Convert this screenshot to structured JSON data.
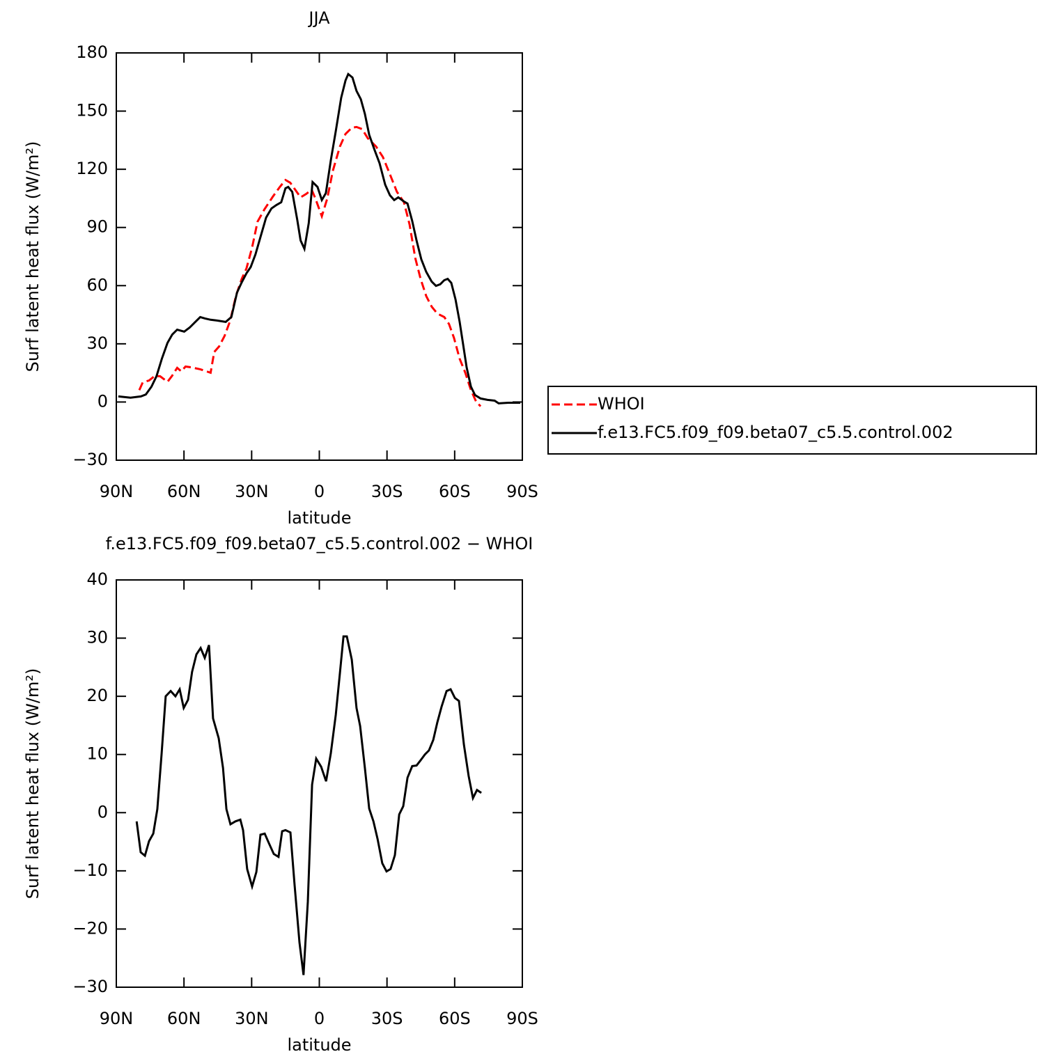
{
  "chart_data": [
    {
      "type": "line",
      "title": "JJA",
      "xlabel": "latitude",
      "ylabel": "Surf latent heat flux (W/m²)",
      "xlim": [
        90,
        -90
      ],
      "xticks": [
        {
          "value": 90,
          "label": "90N"
        },
        {
          "value": 60,
          "label": "60N"
        },
        {
          "value": 30,
          "label": "30N"
        },
        0,
        {
          "value": -30,
          "label": "30S"
        },
        {
          "value": -60,
          "label": "60S"
        },
        {
          "value": -90,
          "label": "90S"
        }
      ],
      "ylim": [
        -30,
        180
      ],
      "yticks": [
        {
          "value": -30,
          "label": "−30"
        },
        0,
        30,
        60,
        90,
        120,
        150,
        180
      ],
      "legend": "right",
      "series": [
        {
          "name": "WHOI",
          "color": "#ff0000",
          "dashed": true,
          "x": [
            79.8,
            78.3,
            75.5,
            73.1,
            70.6,
            67.3,
            65.2,
            63.0,
            61.2,
            59.3,
            56.8,
            52.8,
            48.2,
            46.6,
            44.4,
            42.0,
            39.5,
            37.0,
            34.4,
            32.3,
            29.8,
            27.4,
            24.3,
            20.6,
            17.5,
            15.0,
            12.9,
            10.7,
            8.3,
            5.8,
            3.4,
            1.7,
            -1.1,
            -3.5,
            -6.0,
            -9.1,
            -11.6,
            -14.4,
            -16.5,
            -19.0,
            -21.5,
            -25.2,
            -28.2,
            -31.3,
            -34.4,
            -37.5,
            -40.0,
            -42.5,
            -44.9,
            -47.4,
            -49.8,
            -52.3,
            -55.4,
            -57.5,
            -59.7,
            -62.2,
            -64.7,
            -67.2,
            -69.6,
            -71.5
          ],
          "values": [
            6.1,
            10.1,
            11.1,
            13.3,
            13.3,
            10.4,
            13.6,
            17.6,
            15.8,
            18.3,
            17.9,
            16.9,
            15.1,
            25.8,
            28.7,
            34.1,
            42.0,
            54.6,
            63.5,
            68.9,
            79.7,
            93.0,
            99.4,
            105.9,
            110.9,
            114.5,
            113.1,
            109.5,
            105.5,
            107.3,
            109.5,
            104.8,
            95.8,
            104.8,
            119.2,
            131.7,
            138.2,
            141.4,
            141.8,
            140.7,
            136.0,
            131.7,
            126.3,
            117.4,
            108.4,
            103.0,
            91.5,
            74.3,
            63.5,
            54.6,
            49.2,
            45.6,
            43.8,
            40.2,
            33.0,
            22.3,
            15.1,
            6.1,
            0,
            -2.2
          ]
        },
        {
          "name": "f.e13.FC5.f09_f09.beta07_c5.5.control.002",
          "color": "#000000",
          "dashed": false,
          "x": [
            89.1,
            83.7,
            79.1,
            76.9,
            74.4,
            72.2,
            69.8,
            67.3,
            65.2,
            63.0,
            59.9,
            57.5,
            55.0,
            52.8,
            50.7,
            48.2,
            45.4,
            41.5,
            39.0,
            36.5,
            34.4,
            32.3,
            30.4,
            28.3,
            26.1,
            23.6,
            21.2,
            19.0,
            16.9,
            15.0,
            13.8,
            12.0,
            9.8,
            8.3,
            6.6,
            4.7,
            3.0,
            0.8,
            -1.1,
            -2.9,
            -5.1,
            -7.3,
            -9.7,
            -11.6,
            -12.8,
            -14.7,
            -16.5,
            -18.4,
            -20.2,
            -22.1,
            -24.5,
            -26.7,
            -29.2,
            -31.3,
            -33.2,
            -35.0,
            -37.5,
            -39.1,
            -41.2,
            -43.1,
            -45.2,
            -47.4,
            -49.8,
            -51.7,
            -53.6,
            -55.4,
            -56.9,
            -58.5,
            -60.4,
            -62.2,
            -63.8,
            -65.3,
            -67.2,
            -69.0,
            -71.5,
            -74.6,
            -77.7,
            -79.5,
            -83.8,
            -89.1
          ],
          "values": [
            2.9,
            2.2,
            2.9,
            3.9,
            7.9,
            13.3,
            22.3,
            30.5,
            34.8,
            37.3,
            36.3,
            38.4,
            41.3,
            43.8,
            43.1,
            42.4,
            42.0,
            41.3,
            43.8,
            56.4,
            61.7,
            66.4,
            69.6,
            76.1,
            85.1,
            95.1,
            99.8,
            101.6,
            103.0,
            110.2,
            110.9,
            108.4,
            94.0,
            83.3,
            79.0,
            92.2,
            113.4,
            110.9,
            104.1,
            107.7,
            124.6,
            139.6,
            156.9,
            165.8,
            169.1,
            167.3,
            160.4,
            156.1,
            148.6,
            137.8,
            129.9,
            123.1,
            112.0,
            106.6,
            104.1,
            105.5,
            103.4,
            102.3,
            93.3,
            83.3,
            73.6,
            67.1,
            62.1,
            59.9,
            60.7,
            62.8,
            63.5,
            61.4,
            52.8,
            41.3,
            29.4,
            17.9,
            7.9,
            3.6,
            1.8,
            1.1,
            0.7,
            -0.7,
            -0.4,
            -0.4
          ]
        }
      ]
    },
    {
      "type": "line",
      "title": "f.e13.FC5.f09_f09.beta07_c5.5.control.002 − WHOI",
      "xlabel": "latitude",
      "ylabel": "Surf latent heat flux (W/m²)",
      "xlim": [
        90,
        -90
      ],
      "xticks": [
        {
          "value": 90,
          "label": "90N"
        },
        {
          "value": 60,
          "label": "60N"
        },
        {
          "value": 30,
          "label": "30N"
        },
        0,
        {
          "value": -30,
          "label": "30S"
        },
        {
          "value": -60,
          "label": "60S"
        },
        {
          "value": -90,
          "label": "90S"
        }
      ],
      "ylim": [
        -30,
        40
      ],
      "yticks": [
        {
          "value": -30,
          "label": "−30"
        },
        {
          "value": -20,
          "label": "−20"
        },
        {
          "value": -10,
          "label": "−10"
        },
        0,
        10,
        20,
        30,
        40
      ],
      "series": [
        {
          "color": "#000000",
          "dashed": false,
          "x": [
            81.0,
            79.2,
            77.3,
            75.5,
            73.6,
            71.8,
            69.9,
            68.1,
            65.9,
            63.8,
            61.9,
            60.1,
            58.2,
            56.4,
            54.5,
            52.6,
            50.8,
            48.9,
            47.1,
            44.6,
            42.7,
            41.2,
            39.4,
            37.2,
            35.0,
            33.8,
            32.0,
            29.8,
            27.9,
            26.1,
            24.2,
            22.4,
            20.2,
            18.1,
            16.5,
            15.0,
            12.8,
            11.0,
            8.8,
            7.0,
            5.1,
            3.2,
            1.4,
            -0.8,
            -3.0,
            -5.1,
            -7.3,
            -9.1,
            -10.7,
            -12.2,
            -14.4,
            -16.5,
            -18.1,
            -20.2,
            -22.1,
            -24.0,
            -25.8,
            -27.9,
            -29.8,
            -31.6,
            -33.5,
            -35.4,
            -37.2,
            -39.1,
            -41.2,
            -43.1,
            -44.9,
            -46.8,
            -48.6,
            -50.5,
            -52.3,
            -54.2,
            -56.4,
            -58.2,
            -60.1,
            -61.9,
            -64.1,
            -66.2,
            -68.1,
            -69.9,
            -71.8
          ],
          "values": [
            -1.5,
            -6.8,
            -7.4,
            -4.9,
            -3.6,
            0.6,
            10.2,
            20.0,
            20.9,
            20.0,
            21.2,
            18.0,
            19.4,
            24.2,
            27.2,
            28.3,
            26.6,
            28.8,
            16.2,
            12.8,
            7.7,
            0.6,
            -2.0,
            -1.5,
            -1.2,
            -3.0,
            -9.7,
            -12.7,
            -10.2,
            -3.8,
            -3.6,
            -5.2,
            -7.1,
            -7.6,
            -3.2,
            -3.0,
            -3.4,
            -12.3,
            -22.3,
            -27.9,
            -15.3,
            4.8,
            9.3,
            7.9,
            5.4,
            10.2,
            16.8,
            23.9,
            30.3,
            30.3,
            26.3,
            18.0,
            14.9,
            7.7,
            0.7,
            -1.5,
            -4.5,
            -8.7,
            -10.1,
            -9.7,
            -7.3,
            -0.3,
            1.1,
            6.0,
            8.0,
            8.1,
            9.0,
            10.0,
            10.7,
            12.5,
            15.5,
            18.2,
            20.9,
            21.2,
            19.7,
            19.2,
            11.7,
            6.3,
            2.5,
            3.9,
            3.4
          ]
        }
      ]
    }
  ]
}
